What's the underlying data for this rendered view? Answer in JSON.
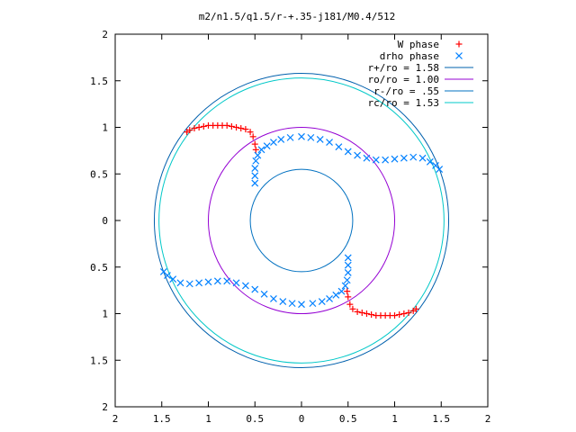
{
  "chart_data": {
    "type": "scatter",
    "title": "m2/n1.5/q1.5/r-+.35-j181/M0.4/512",
    "xlim": [
      -2,
      2
    ],
    "ylim": [
      -2,
      2
    ],
    "x_ticks": [
      -2,
      -1.5,
      -1,
      -0.5,
      0,
      0.5,
      1,
      1.5,
      2
    ],
    "y_ticks": [
      -2,
      -1.5,
      -1,
      -0.5,
      0,
      0.5,
      1,
      1.5,
      2
    ],
    "x_tick_labels": [
      "2",
      "1.5",
      "1",
      "0.5",
      "0",
      "0.5",
      "1",
      "1.5",
      "2"
    ],
    "y_tick_labels": [
      "2",
      "1.5",
      "1",
      "0.5",
      "0",
      "0.5",
      "1",
      "1.5",
      "2"
    ],
    "grid": false,
    "legend_position": "top-right",
    "series": [
      {
        "name": "W phase",
        "kind": "points",
        "marker": "+",
        "color": "#ff0000",
        "points": [
          [
            -1.23,
            0.95
          ],
          [
            -1.2,
            0.97
          ],
          [
            -1.15,
            0.99
          ],
          [
            -1.1,
            1.0
          ],
          [
            -1.05,
            1.01
          ],
          [
            -1.0,
            1.02
          ],
          [
            -0.95,
            1.02
          ],
          [
            -0.9,
            1.02
          ],
          [
            -0.85,
            1.02
          ],
          [
            -0.8,
            1.02
          ],
          [
            -0.75,
            1.01
          ],
          [
            -0.7,
            1.0
          ],
          [
            -0.65,
            0.99
          ],
          [
            -0.6,
            0.98
          ],
          [
            -0.55,
            0.95
          ],
          [
            -0.52,
            0.9
          ],
          [
            -0.5,
            0.82
          ],
          [
            -0.49,
            0.76
          ],
          [
            1.23,
            -0.95
          ],
          [
            1.2,
            -0.97
          ],
          [
            1.15,
            -0.99
          ],
          [
            1.1,
            -1.0
          ],
          [
            1.05,
            -1.01
          ],
          [
            1.0,
            -1.02
          ],
          [
            0.95,
            -1.02
          ],
          [
            0.9,
            -1.02
          ],
          [
            0.85,
            -1.02
          ],
          [
            0.8,
            -1.02
          ],
          [
            0.75,
            -1.01
          ],
          [
            0.7,
            -1.0
          ],
          [
            0.65,
            -0.99
          ],
          [
            0.6,
            -0.98
          ],
          [
            0.55,
            -0.95
          ],
          [
            0.52,
            -0.9
          ],
          [
            0.5,
            -0.82
          ],
          [
            0.49,
            -0.76
          ]
        ]
      },
      {
        "name": "drho phase",
        "kind": "points",
        "marker": "x",
        "color": "#0080ff",
        "points": [
          [
            -0.5,
            0.4
          ],
          [
            -0.5,
            0.48
          ],
          [
            -0.5,
            0.56
          ],
          [
            -0.49,
            0.64
          ],
          [
            -0.47,
            0.7
          ],
          [
            -0.43,
            0.76
          ],
          [
            -0.37,
            0.8
          ],
          [
            -0.3,
            0.84
          ],
          [
            -0.22,
            0.87
          ],
          [
            -0.12,
            0.89
          ],
          [
            0.0,
            0.9
          ],
          [
            0.1,
            0.89
          ],
          [
            0.2,
            0.87
          ],
          [
            0.3,
            0.84
          ],
          [
            0.4,
            0.79
          ],
          [
            0.5,
            0.74
          ],
          [
            0.6,
            0.7
          ],
          [
            0.7,
            0.67
          ],
          [
            0.8,
            0.65
          ],
          [
            0.9,
            0.65
          ],
          [
            1.0,
            0.66
          ],
          [
            1.1,
            0.67
          ],
          [
            1.2,
            0.68
          ],
          [
            1.3,
            0.67
          ],
          [
            1.38,
            0.63
          ],
          [
            1.44,
            0.59
          ],
          [
            1.48,
            0.55
          ],
          [
            0.5,
            -0.4
          ],
          [
            0.5,
            -0.48
          ],
          [
            0.5,
            -0.56
          ],
          [
            0.49,
            -0.64
          ],
          [
            0.47,
            -0.7
          ],
          [
            0.43,
            -0.76
          ],
          [
            0.37,
            -0.8
          ],
          [
            0.3,
            -0.84
          ],
          [
            0.22,
            -0.87
          ],
          [
            0.12,
            -0.89
          ],
          [
            0.0,
            -0.9
          ],
          [
            -0.1,
            -0.89
          ],
          [
            -0.2,
            -0.87
          ],
          [
            -0.3,
            -0.84
          ],
          [
            -0.4,
            -0.79
          ],
          [
            -0.5,
            -0.74
          ],
          [
            -0.6,
            -0.7
          ],
          [
            -0.7,
            -0.67
          ],
          [
            -0.8,
            -0.65
          ],
          [
            -0.9,
            -0.65
          ],
          [
            -1.0,
            -0.66
          ],
          [
            -1.1,
            -0.67
          ],
          [
            -1.2,
            -0.68
          ],
          [
            -1.3,
            -0.67
          ],
          [
            -1.38,
            -0.63
          ],
          [
            -1.44,
            -0.59
          ],
          [
            -1.48,
            -0.55
          ]
        ]
      },
      {
        "name": "r+/ro = 1.58",
        "kind": "circle",
        "radius": 1.58,
        "color": "#0060ad"
      },
      {
        "name": "ro/ro = 1.00",
        "kind": "circle",
        "radius": 1.0,
        "color": "#9400d3"
      },
      {
        "name": "r-/ro = .55",
        "kind": "circle",
        "radius": 0.55,
        "color": "#0070c0"
      },
      {
        "name": "rc/ro = 1.53",
        "kind": "circle",
        "radius": 1.53,
        "color": "#00c8c8"
      }
    ]
  }
}
